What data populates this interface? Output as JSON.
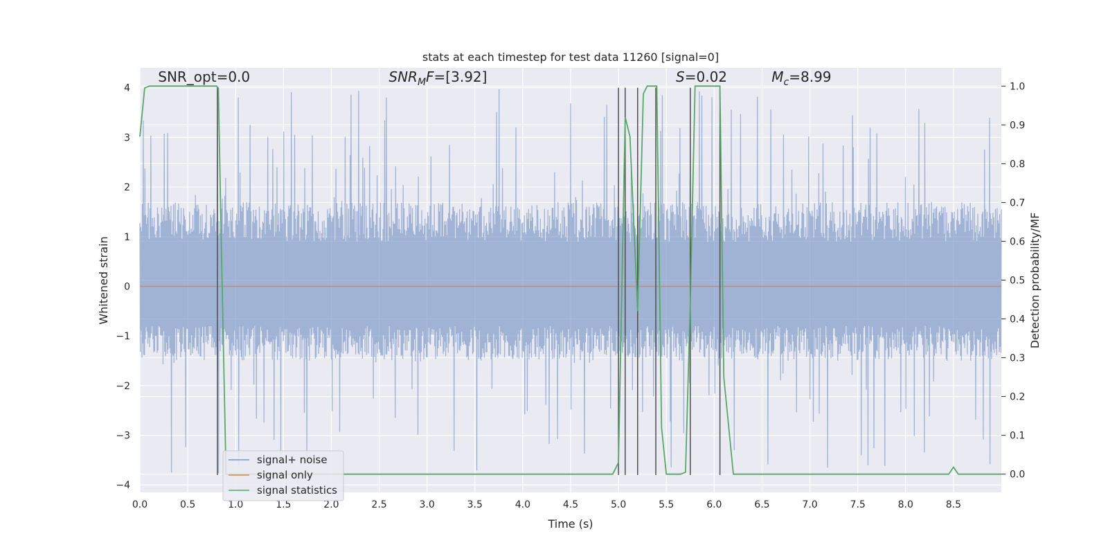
{
  "chart_data": {
    "type": "line",
    "title": "stats at each timestep for test data 11260 [signal=0]",
    "xlabel": "Time (s)",
    "ylabel_left": "Whitened strain",
    "ylabel_right": "Detection probability/MF",
    "xlim": [
      0.0,
      9.0
    ],
    "ylim_left": [
      -4.15,
      4.4
    ],
    "ylim_right": [
      -0.047,
      1.047
    ],
    "x_ticks": [
      0.0,
      0.5,
      1.0,
      1.5,
      2.0,
      2.5,
      3.0,
      3.5,
      4.0,
      4.5,
      5.0,
      5.5,
      6.0,
      6.5,
      7.0,
      7.5,
      8.0,
      8.5
    ],
    "x_tick_labels": [
      "0.0",
      "0.5",
      "1.0",
      "1.5",
      "2.0",
      "2.5",
      "3.0",
      "3.5",
      "4.0",
      "4.5",
      "5.0",
      "5.5",
      "6.0",
      "6.5",
      "7.0",
      "7.5",
      "8.0",
      "8.5"
    ],
    "y_left_ticks": [
      4,
      3,
      2,
      1,
      0,
      -1,
      -2,
      -3,
      -4
    ],
    "y_left_tick_labels": [
      "4",
      "3",
      "2",
      "1",
      "0",
      "−1",
      "−2",
      "−3",
      "−4"
    ],
    "y_right_ticks": [
      1.0,
      0.9,
      0.8,
      0.7,
      0.6,
      0.5,
      0.4,
      0.3,
      0.2,
      0.1,
      0.0
    ],
    "y_right_tick_labels": [
      "1.0",
      "0.9",
      "0.8",
      "0.7",
      "0.6",
      "0.5",
      "0.4",
      "0.3",
      "0.2",
      "0.1",
      "0.0"
    ],
    "grid": true,
    "legend_location": "lower-left",
    "annotations": [
      {
        "name": "snr-opt",
        "text": "SNR_opt=0.0",
        "x": 0.19,
        "y": 4.12
      },
      {
        "name": "snr-mf",
        "text": "SNR_MF=[3.92]",
        "x": 2.6,
        "y": 4.12
      },
      {
        "name": "s-value",
        "text": "S=0.02",
        "x": 5.6,
        "y": 4.12
      },
      {
        "name": "mc-value",
        "text": "M_c=8.99",
        "x": 6.6,
        "y": 4.12
      }
    ],
    "annot_display": [
      {
        "parts": [
          {
            "t": "SNR_opt=0.0",
            "italic": false
          }
        ]
      },
      {
        "parts": [
          {
            "t": "SNR",
            "italic": true
          },
          {
            "t": "M",
            "italic": true,
            "sub": true
          },
          {
            "t": "F",
            "italic": true
          },
          {
            "t": "=[3.92]",
            "italic": false
          }
        ]
      },
      {
        "parts": [
          {
            "t": "S",
            "italic": true
          },
          {
            "t": "=0.02",
            "italic": false
          }
        ]
      },
      {
        "parts": [
          {
            "t": "M",
            "italic": true
          },
          {
            "t": "c",
            "italic": true,
            "sub": true
          },
          {
            "t": "=8.99",
            "italic": false
          }
        ]
      }
    ],
    "vertical_lines_x": [
      0.81,
      5.0,
      5.07,
      5.2,
      5.39,
      5.75,
      6.06
    ],
    "vertical_lines_ymin": -3.8,
    "vertical_lines_ymax": 4.0,
    "series": [
      {
        "name": "signal+ noise",
        "axis": "left",
        "color": "#7895c4",
        "style": "noise-band",
        "core_range": [
          -1.5,
          1.7
        ],
        "peak_range": [
          -3.8,
          4.0
        ],
        "points": 2048
      },
      {
        "name": "signal only",
        "axis": "left",
        "color": "#dd8452",
        "x": [
          0.0,
          9.0
        ],
        "y": [
          0.0,
          0.0
        ]
      },
      {
        "name": "signal statistics",
        "axis": "right",
        "color": "#55a868",
        "x": [
          0.0,
          0.05,
          0.1,
          0.2,
          0.3,
          0.4,
          0.5,
          0.6,
          0.7,
          0.8,
          0.82,
          0.85,
          0.9,
          0.95,
          1.0,
          1.5,
          2.0,
          2.5,
          3.0,
          3.5,
          4.0,
          4.5,
          4.94,
          5.0,
          5.07,
          5.12,
          5.2,
          5.26,
          5.3,
          5.35,
          5.4,
          5.45,
          5.5,
          5.55,
          5.6,
          5.65,
          5.7,
          5.75,
          5.8,
          5.85,
          5.9,
          6.0,
          6.06,
          6.1,
          6.2,
          6.5,
          7.0,
          7.5,
          8.0,
          8.45,
          8.5,
          8.55,
          8.6,
          8.8,
          9.0
        ],
        "y": [
          0.87,
          0.995,
          1.0,
          1.0,
          1.0,
          1.0,
          1.0,
          1.0,
          1.0,
          1.0,
          0.995,
          0.6,
          0.0,
          0.0,
          0.0,
          0.0,
          0.0,
          0.0,
          0.0,
          0.0,
          0.0,
          0.0,
          0.0,
          0.03,
          0.92,
          0.87,
          0.42,
          0.98,
          1.0,
          1.0,
          1.0,
          0.12,
          0.0,
          0.0,
          0.0,
          0.0,
          0.005,
          0.44,
          1.0,
          1.0,
          1.0,
          1.0,
          1.0,
          0.25,
          0.0,
          0.0,
          0.0,
          0.0,
          0.0,
          0.0,
          0.018,
          0.0,
          0.0,
          0.0,
          0.0
        ]
      }
    ]
  }
}
